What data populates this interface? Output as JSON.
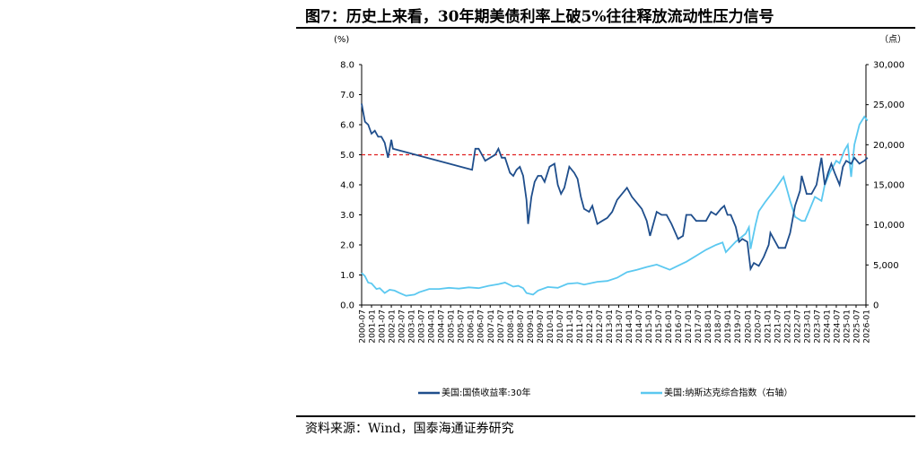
{
  "title": "图7：历史上来看，30年期美债利率上破5%往往释放流动性压力信号",
  "source": "资料来源：Wind，国泰海通证券研究",
  "bottom_fragment": "",
  "colors": {
    "series1": "#1f4e8c",
    "series2": "#5bc8f0",
    "refline": "#e02020"
  },
  "chart_data": {
    "type": "line",
    "title": "图7：历史上来看，30年期美债利率上破5%往往释放流动性压力信号",
    "y_left_unit": "(%)",
    "y_right_unit": "（点）",
    "y_left_lim": [
      0,
      8
    ],
    "y_right_lim": [
      0,
      30000
    ],
    "y_left_ticks": [
      "0.0",
      "1.0",
      "2.0",
      "3.0",
      "4.0",
      "5.0",
      "6.0",
      "7.0",
      "8.0"
    ],
    "y_right_ticks": [
      "0",
      "5,000",
      "10,000",
      "15,000",
      "20,000",
      "25,000",
      "30,000"
    ],
    "x_ticks": [
      "2000-07",
      "2001-01",
      "2001-07",
      "2002-01",
      "2002-07",
      "2003-01",
      "2003-07",
      "2004-01",
      "2004-07",
      "2005-01",
      "2005-07",
      "2006-01",
      "2006-07",
      "2007-01",
      "2007-07",
      "2008-01",
      "2008-07",
      "2009-01",
      "2009-07",
      "2010-01",
      "2010-07",
      "2011-01",
      "2011-07",
      "2012-01",
      "2012-07",
      "2013-01",
      "2013-07",
      "2014-01",
      "2014-07",
      "2015-01",
      "2015-07",
      "2016-01",
      "2016-07",
      "2017-01",
      "2017-07",
      "2018-01",
      "2018-07",
      "2019-01",
      "2019-07",
      "2020-01",
      "2020-07",
      "2021-01",
      "2021-07",
      "2022-01",
      "2022-07",
      "2023-01",
      "2023-07",
      "2024-01",
      "2024-07",
      "2025-01",
      "2025-07",
      "2026-01"
    ],
    "reference_line": {
      "value": 5.0,
      "axis": "left",
      "style": "dashed"
    },
    "series": [
      {
        "name": "美国:国债收益率:30年",
        "axis": "left",
        "x": [
          "2000-07",
          "2000-09",
          "2000-11",
          "2001-01",
          "2001-03",
          "2001-05",
          "2001-07",
          "2001-09",
          "2001-11",
          "2002-01",
          "2002-02",
          "2006-02",
          "2006-04",
          "2006-06",
          "2006-08",
          "2006-10",
          "2007-01",
          "2007-04",
          "2007-06",
          "2007-08",
          "2007-10",
          "2008-01",
          "2008-03",
          "2008-05",
          "2008-07",
          "2008-09",
          "2008-11",
          "2008-12",
          "2009-02",
          "2009-04",
          "2009-06",
          "2009-08",
          "2009-10",
          "2010-01",
          "2010-04",
          "2010-06",
          "2010-08",
          "2010-10",
          "2011-01",
          "2011-04",
          "2011-06",
          "2011-08",
          "2011-10",
          "2012-01",
          "2012-03",
          "2012-06",
          "2012-09",
          "2012-12",
          "2013-03",
          "2013-06",
          "2013-09",
          "2013-12",
          "2014-03",
          "2014-06",
          "2014-09",
          "2014-12",
          "2015-02",
          "2015-06",
          "2015-09",
          "2015-12",
          "2016-03",
          "2016-07",
          "2016-10",
          "2016-12",
          "2017-03",
          "2017-06",
          "2017-09",
          "2017-12",
          "2018-03",
          "2018-06",
          "2018-09",
          "2018-11",
          "2019-01",
          "2019-03",
          "2019-06",
          "2019-08",
          "2019-10",
          "2020-01",
          "2020-03",
          "2020-05",
          "2020-08",
          "2020-11",
          "2021-02",
          "2021-03",
          "2021-06",
          "2021-08",
          "2021-12",
          "2022-03",
          "2022-06",
          "2022-09",
          "2022-10",
          "2023-01",
          "2023-04",
          "2023-07",
          "2023-10",
          "2023-12",
          "2024-02",
          "2024-04",
          "2024-06",
          "2024-09",
          "2024-11",
          "2025-01",
          "2025-04",
          "2025-06",
          "2025-09",
          "2025-12",
          "2026-02"
        ],
        "values": [
          6.7,
          6.1,
          6.0,
          5.7,
          5.8,
          5.6,
          5.6,
          5.4,
          4.9,
          5.5,
          5.2,
          4.5,
          5.2,
          5.2,
          5.0,
          4.8,
          4.9,
          5.0,
          5.2,
          4.9,
          4.9,
          4.4,
          4.3,
          4.5,
          4.6,
          4.3,
          3.5,
          2.7,
          3.6,
          4.1,
          4.3,
          4.3,
          4.1,
          4.6,
          4.7,
          4.0,
          3.7,
          3.9,
          4.6,
          4.4,
          4.2,
          3.6,
          3.2,
          3.1,
          3.3,
          2.7,
          2.8,
          2.9,
          3.1,
          3.5,
          3.7,
          3.9,
          3.6,
          3.4,
          3.2,
          2.8,
          2.3,
          3.1,
          3.0,
          3.0,
          2.7,
          2.2,
          2.3,
          3.0,
          3.0,
          2.8,
          2.8,
          2.8,
          3.1,
          3.0,
          3.2,
          3.3,
          3.0,
          3.0,
          2.6,
          2.1,
          2.2,
          2.1,
          1.2,
          1.4,
          1.3,
          1.6,
          2.0,
          2.4,
          2.1,
          1.9,
          1.9,
          2.4,
          3.3,
          3.8,
          4.3,
          3.7,
          3.7,
          4.0,
          4.9,
          4.0,
          4.4,
          4.7,
          4.4,
          4.0,
          4.6,
          4.8,
          4.7,
          4.9,
          4.7,
          4.8,
          4.9
        ]
      },
      {
        "name": "美国:纳斯达克综合指数（右轴）",
        "axis": "right",
        "x": [
          "2000-07",
          "2000-09",
          "2000-11",
          "2001-01",
          "2001-04",
          "2001-06",
          "2001-09",
          "2001-12",
          "2002-03",
          "2002-06",
          "2002-10",
          "2003-03",
          "2003-06",
          "2003-12",
          "2004-06",
          "2004-12",
          "2005-06",
          "2005-12",
          "2006-06",
          "2006-12",
          "2007-06",
          "2007-10",
          "2008-03",
          "2008-06",
          "2008-09",
          "2008-11",
          "2009-03",
          "2009-06",
          "2009-12",
          "2010-06",
          "2010-12",
          "2011-06",
          "2011-10",
          "2012-06",
          "2012-12",
          "2013-06",
          "2013-12",
          "2014-06",
          "2014-12",
          "2015-06",
          "2016-02",
          "2016-06",
          "2016-12",
          "2017-06",
          "2017-12",
          "2018-06",
          "2018-10",
          "2018-12",
          "2019-06",
          "2019-12",
          "2020-02",
          "2020-03",
          "2020-06",
          "2020-08",
          "2020-12",
          "2021-06",
          "2021-11",
          "2022-03",
          "2022-06",
          "2022-10",
          "2022-12",
          "2023-06",
          "2023-10",
          "2023-12",
          "2024-03",
          "2024-07",
          "2024-09",
          "2024-12",
          "2025-02",
          "2025-04",
          "2025-06",
          "2025-09",
          "2025-12",
          "2026-02"
        ],
        "values": [
          4000,
          3600,
          2800,
          2700,
          2000,
          2100,
          1500,
          1900,
          1800,
          1500,
          1150,
          1300,
          1600,
          2000,
          2000,
          2150,
          2050,
          2200,
          2100,
          2400,
          2600,
          2800,
          2300,
          2400,
          2100,
          1500,
          1300,
          1800,
          2250,
          2150,
          2650,
          2750,
          2550,
          2900,
          3000,
          3400,
          4100,
          4400,
          4750,
          5050,
          4400,
          4800,
          5400,
          6150,
          6900,
          7500,
          7800,
          6600,
          7900,
          8900,
          9700,
          7000,
          10000,
          11700,
          12900,
          14500,
          16000,
          13000,
          11000,
          10500,
          10500,
          13500,
          13000,
          15000,
          16500,
          18000,
          17700,
          19300,
          20000,
          16000,
          20000,
          22500,
          23500,
          23000
        ]
      }
    ]
  },
  "legend": {
    "series1_label": "美国:国债收益率:30年",
    "series2_label": "美国:纳斯达克综合指数（右轴）"
  }
}
